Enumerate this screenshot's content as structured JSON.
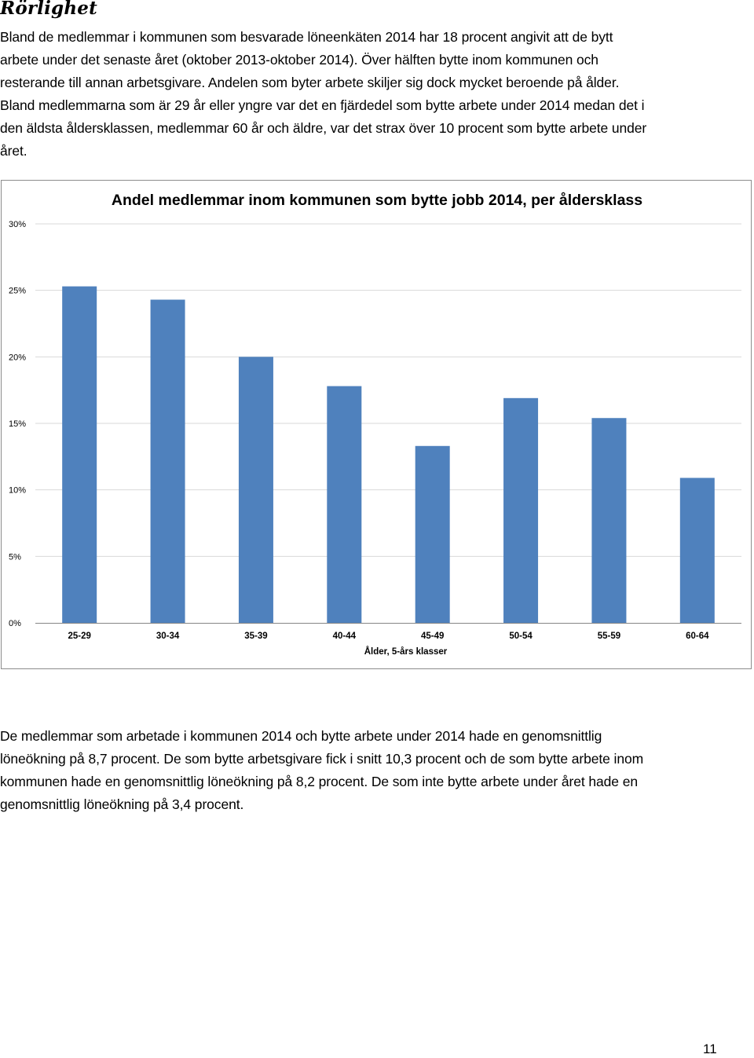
{
  "section": {
    "heading": "Rörlighet"
  },
  "paragraph1": {
    "lines": [
      "Bland de medlemmar i kommunen som besvarade löneenkäten 2014 har 18 procent angivit att de bytt",
      "arbete under det senaste året (oktober 2013-oktober 2014). Över hälften bytte inom kommunen och",
      "resterande till annan arbetsgivare. Andelen som byter arbete skiljer sig dock mycket beroende på ålder.",
      "Bland medlemmarna som är 29 år eller yngre var det en fjärdedel som bytte arbete under 2014 medan det i",
      "den äldsta åldersklassen, medlemmar 60 år och äldre, var det strax över 10 procent som bytte arbete under",
      "året."
    ]
  },
  "chart_data": {
    "type": "bar",
    "title": "Andel medlemmar inom kommunen som bytte jobb 2014, per åldersklass",
    "xlabel": "Ålder, 5-års klasser",
    "ylabel": "",
    "categories": [
      "25-29",
      "30-34",
      "35-39",
      "40-44",
      "45-49",
      "50-54",
      "55-59",
      "60-64"
    ],
    "values": [
      25.3,
      24.3,
      20.0,
      17.8,
      13.3,
      16.9,
      15.4,
      10.9
    ],
    "ylim": [
      0,
      30
    ],
    "yticks": [
      "0%",
      "5%",
      "10%",
      "15%",
      "20%",
      "25%",
      "30%"
    ],
    "ytick_values": [
      0,
      5,
      10,
      15,
      20,
      25,
      30
    ],
    "grid": true,
    "legend": "none",
    "bar_color": "#4f81bd",
    "grid_color": "#d9d9d9"
  },
  "paragraph2": {
    "lines": [
      "De medlemmar som arbetade i kommunen 2014 och bytte arbete under 2014 hade en genomsnittlig",
      "löneökning på 8,7 procent. De som bytte arbetsgivare fick i snitt 10,3 procent och de som bytte arbete inom",
      "kommunen hade en genomsnittlig löneökning på 8,2 procent. De som inte bytte arbete under året hade en",
      "genomsnittlig löneökning på 3,4 procent."
    ]
  },
  "footer": {
    "page_number": "11"
  }
}
